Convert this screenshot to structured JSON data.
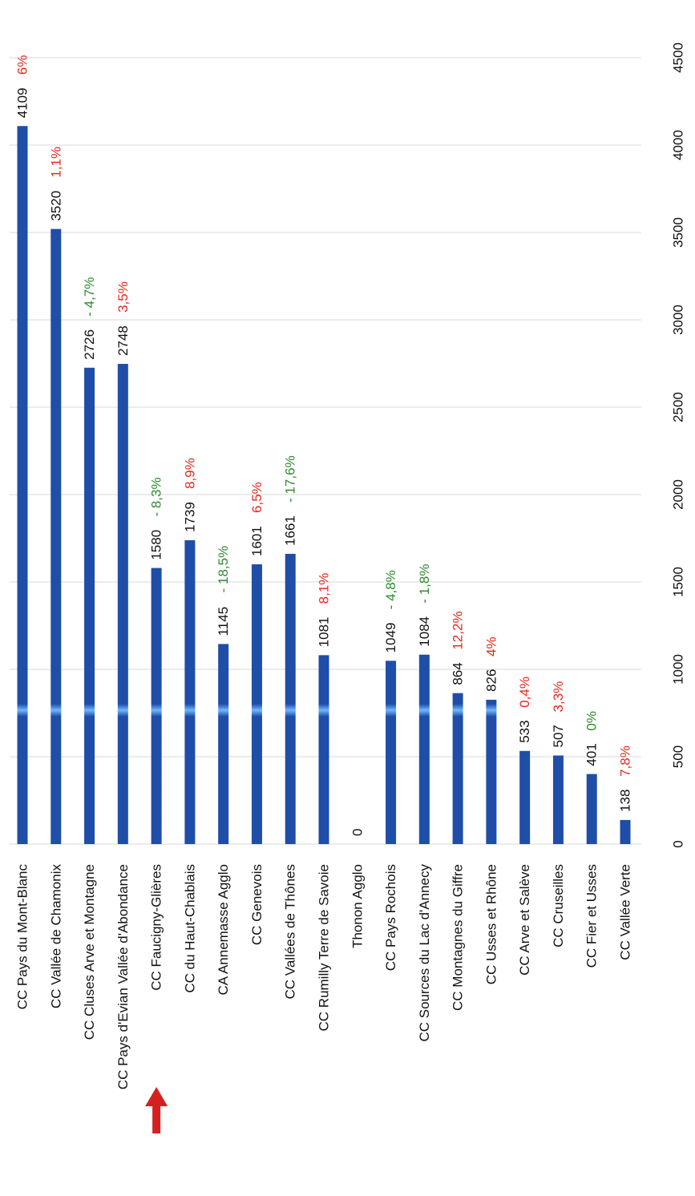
{
  "chart_data": {
    "type": "bar",
    "orientation": "rotated-90-clockwise",
    "categories": [
      "CC Pays du Mont-Blanc",
      "CC Vallée de Chamonix",
      "CC Cluses Arve et Montagne",
      "CC Pays d'Evian Vallée d'Abondance",
      "CC Faucigny-Glières",
      "CC du Haut-Chablais",
      "CA Annemasse Agglo",
      "CC Genevois",
      "CC Vallées de Thônes",
      "CC Rumilly Terre de Savoie",
      "Thonon Agglo",
      "CC Pays Rochois",
      "CC Sources du Lac d'Annecy",
      "CC Montagnes du Giffre",
      "CC Usses et Rhône",
      "CC Arve et Salève",
      "CC Cruseilles",
      "CC Fier et Usses",
      "CC Vallée Verte"
    ],
    "values": [
      4109,
      3520,
      2726,
      2748,
      1580,
      1739,
      1145,
      1601,
      1661,
      1081,
      0,
      1049,
      1084,
      864,
      826,
      533,
      507,
      401,
      138
    ],
    "value_labels": [
      "4109",
      "3520",
      "2726",
      "2748",
      "1580",
      "1739",
      "1145",
      "1601",
      "1661",
      "1081",
      "0",
      "1049",
      "1084",
      "864",
      "826",
      "533",
      "507",
      "401",
      "138"
    ],
    "changes": [
      "6%",
      "1,1%",
      "- 4,7%",
      "3,5%",
      "- 8,3%",
      "8,9%",
      "- 18,5%",
      "6,5%",
      "- 17,6%",
      "8,1%",
      "",
      "- 4,8%",
      "- 1,8%",
      "12,2%",
      "4%",
      "0,4%",
      "3,3%",
      "0%",
      "7,8%"
    ],
    "change_colors": [
      "#e8281e",
      "#e8281e",
      "#2e8b2e",
      "#e8281e",
      "#2e8b2e",
      "#e8281e",
      "#2e8b2e",
      "#e8281e",
      "#2e8b2e",
      "#e8281e",
      "#e8281e",
      "#2e8b2e",
      "#2e8b2e",
      "#e8281e",
      "#e8281e",
      "#e8281e",
      "#e8281e",
      "#2e8b2e",
      "#e8281e"
    ],
    "ticks": [
      0,
      500,
      1000,
      1500,
      2000,
      2500,
      3000,
      3500,
      4000,
      4500
    ],
    "tick_labels": [
      "0",
      "500",
      "1000",
      "1500",
      "2000",
      "2500",
      "3000",
      "3500",
      "4000",
      "4500"
    ],
    "ylim": [
      0,
      4500
    ],
    "bar_color": "#1f4ea8",
    "bar_highlight_color": "#6fb8ff",
    "grid": true,
    "highlight_arrow": {
      "category": "CC Faucigny-Glières",
      "color": "#d62020",
      "icon": "arrow-icon"
    }
  }
}
